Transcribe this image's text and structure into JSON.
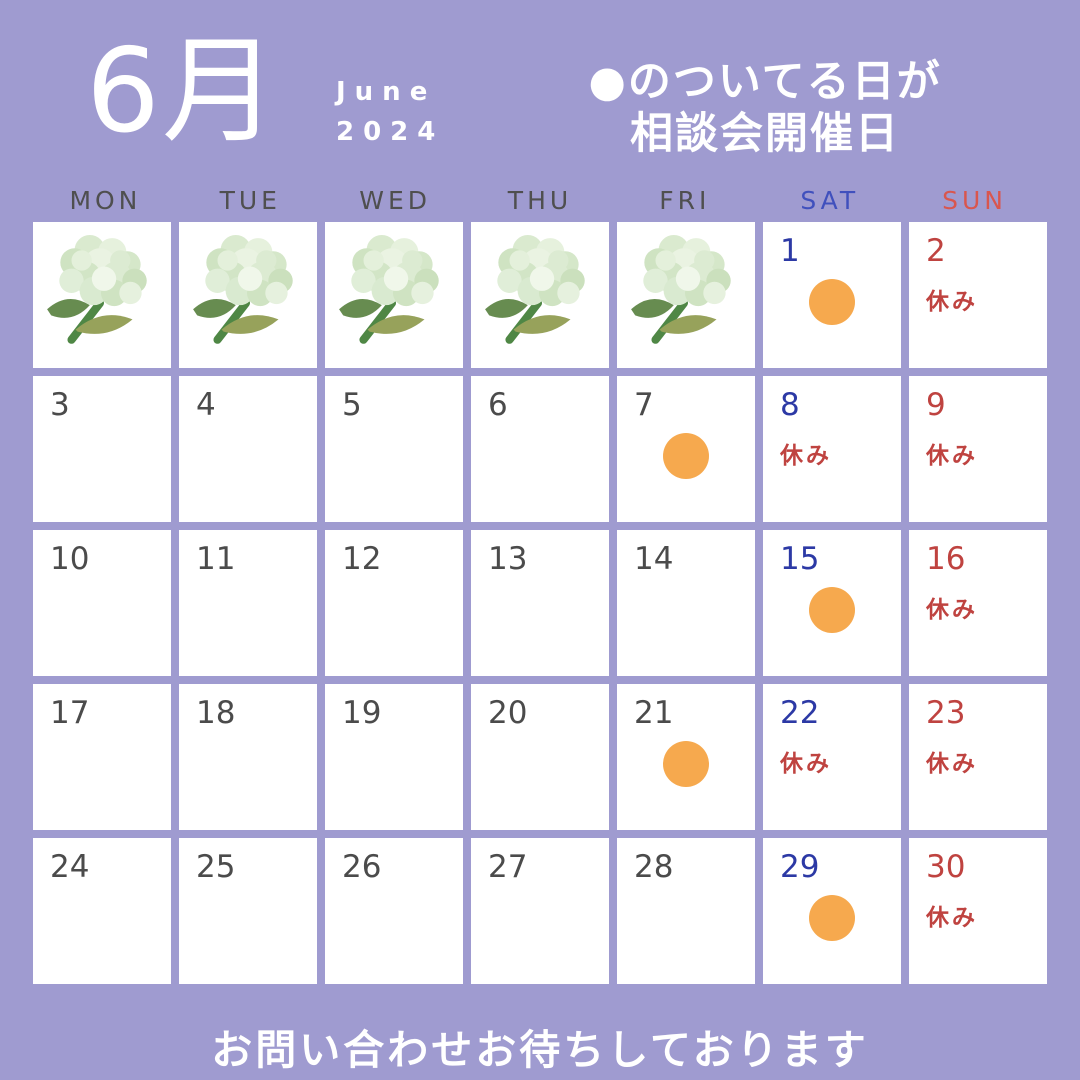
{
  "header": {
    "month_jp": "6月",
    "month_en": "June",
    "year": "2024",
    "note_line1": "●のついてる日が",
    "note_line2": "相談会開催日"
  },
  "weekdays": [
    {
      "label": "MON",
      "type": "weekday"
    },
    {
      "label": "TUE",
      "type": "weekday"
    },
    {
      "label": "WED",
      "type": "weekday"
    },
    {
      "label": "THU",
      "type": "weekday"
    },
    {
      "label": "FRI",
      "type": "weekday"
    },
    {
      "label": "SAT",
      "type": "saturday"
    },
    {
      "label": "SUN",
      "type": "sunday"
    }
  ],
  "closed_label": "休み",
  "cells": [
    {
      "day": "",
      "type": "weekday",
      "flower": true,
      "dot": false,
      "closed": false
    },
    {
      "day": "",
      "type": "weekday",
      "flower": true,
      "dot": false,
      "closed": false
    },
    {
      "day": "",
      "type": "weekday",
      "flower": true,
      "dot": false,
      "closed": false
    },
    {
      "day": "",
      "type": "weekday",
      "flower": true,
      "dot": false,
      "closed": false
    },
    {
      "day": "",
      "type": "weekday",
      "flower": true,
      "dot": false,
      "closed": false
    },
    {
      "day": "1",
      "type": "saturday",
      "flower": false,
      "dot": true,
      "closed": false
    },
    {
      "day": "2",
      "type": "sunday",
      "flower": false,
      "dot": false,
      "closed": true
    },
    {
      "day": "3",
      "type": "weekday",
      "flower": false,
      "dot": false,
      "closed": false
    },
    {
      "day": "4",
      "type": "weekday",
      "flower": false,
      "dot": false,
      "closed": false
    },
    {
      "day": "5",
      "type": "weekday",
      "flower": false,
      "dot": false,
      "closed": false
    },
    {
      "day": "6",
      "type": "weekday",
      "flower": false,
      "dot": false,
      "closed": false
    },
    {
      "day": "7",
      "type": "weekday",
      "flower": false,
      "dot": true,
      "closed": false
    },
    {
      "day": "8",
      "type": "saturday",
      "flower": false,
      "dot": false,
      "closed": true
    },
    {
      "day": "9",
      "type": "sunday",
      "flower": false,
      "dot": false,
      "closed": true
    },
    {
      "day": "10",
      "type": "weekday",
      "flower": false,
      "dot": false,
      "closed": false
    },
    {
      "day": "11",
      "type": "weekday",
      "flower": false,
      "dot": false,
      "closed": false
    },
    {
      "day": "12",
      "type": "weekday",
      "flower": false,
      "dot": false,
      "closed": false
    },
    {
      "day": "13",
      "type": "weekday",
      "flower": false,
      "dot": false,
      "closed": false
    },
    {
      "day": "14",
      "type": "weekday",
      "flower": false,
      "dot": false,
      "closed": false
    },
    {
      "day": "15",
      "type": "saturday",
      "flower": false,
      "dot": true,
      "closed": false
    },
    {
      "day": "16",
      "type": "sunday",
      "flower": false,
      "dot": false,
      "closed": true
    },
    {
      "day": "17",
      "type": "weekday",
      "flower": false,
      "dot": false,
      "closed": false
    },
    {
      "day": "18",
      "type": "weekday",
      "flower": false,
      "dot": false,
      "closed": false
    },
    {
      "day": "19",
      "type": "weekday",
      "flower": false,
      "dot": false,
      "closed": false
    },
    {
      "day": "20",
      "type": "weekday",
      "flower": false,
      "dot": false,
      "closed": false
    },
    {
      "day": "21",
      "type": "weekday",
      "flower": false,
      "dot": true,
      "closed": false
    },
    {
      "day": "22",
      "type": "saturday",
      "flower": false,
      "dot": false,
      "closed": true
    },
    {
      "day": "23",
      "type": "sunday",
      "flower": false,
      "dot": false,
      "closed": true
    },
    {
      "day": "24",
      "type": "weekday",
      "flower": false,
      "dot": false,
      "closed": false
    },
    {
      "day": "25",
      "type": "weekday",
      "flower": false,
      "dot": false,
      "closed": false
    },
    {
      "day": "26",
      "type": "weekday",
      "flower": false,
      "dot": false,
      "closed": false
    },
    {
      "day": "27",
      "type": "weekday",
      "flower": false,
      "dot": false,
      "closed": false
    },
    {
      "day": "28",
      "type": "weekday",
      "flower": false,
      "dot": false,
      "closed": false
    },
    {
      "day": "29",
      "type": "saturday",
      "flower": false,
      "dot": true,
      "closed": false
    },
    {
      "day": "30",
      "type": "sunday",
      "flower": false,
      "dot": false,
      "closed": true
    }
  ],
  "footer": {
    "message": "お問い合わせお待ちしております"
  },
  "colors": {
    "bg": "#9f9bd0",
    "cell": "#ffffff",
    "white": "#ffffff",
    "text_weekday": "#4b4b4b",
    "text_weekday_header": "#4f4f4f",
    "text_saturday": "#2c39a5",
    "text_sunday": "#bf4340",
    "header_sat": "#4050bd",
    "header_sun": "#d9564e",
    "dot": "#f6a94e"
  }
}
